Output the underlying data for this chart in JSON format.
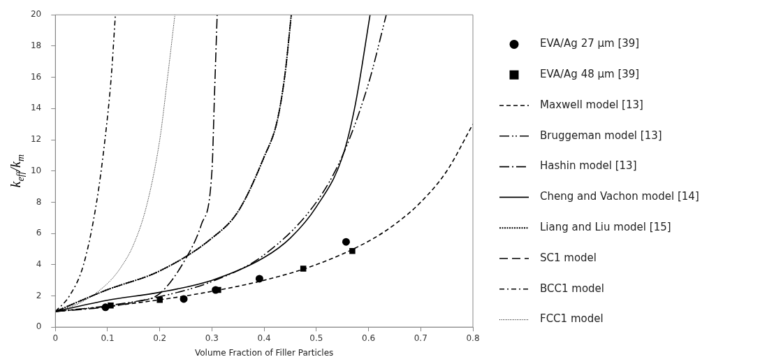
{
  "chart_data": {
    "type": "line",
    "xlabel": "Volume Fraction of Filler Particles",
    "ylabel": "k$_{eff}$/k$_{m}$",
    "xlim": [
      0,
      0.8
    ],
    "xticks": [
      0,
      0.1,
      0.2,
      0.3,
      0.4,
      0.5,
      0.6,
      0.7,
      0.8
    ],
    "ylim": [
      0,
      20
    ],
    "yticks": [
      0,
      2,
      4,
      6,
      8,
      10,
      12,
      14,
      16,
      18,
      20
    ],
    "grid": false,
    "legend": "right",
    "series": [
      {
        "name": "EVA/Ag 27 μm [39]",
        "type": "scatter",
        "marker": "circle",
        "color": "#000000",
        "x": [
          0.096,
          0.246,
          0.307,
          0.391,
          0.557
        ],
        "values": [
          1.27,
          1.8,
          2.38,
          3.1,
          5.46
        ]
      },
      {
        "name": "EVA/Ag 48 μm [39]",
        "type": "scatter",
        "marker": "square",
        "color": "#000000",
        "x": [
          0.106,
          0.2,
          0.312,
          0.475,
          0.569
        ],
        "values": [
          1.38,
          1.74,
          2.38,
          3.74,
          4.87
        ]
      },
      {
        "name": "Maxwell model [13]",
        "line_style": "dashed",
        "color": "#000000",
        "x": [
          0,
          0.1,
          0.2,
          0.3,
          0.4,
          0.5,
          0.6,
          0.65,
          0.7,
          0.75,
          0.8
        ],
        "values": [
          1,
          1.33,
          1.75,
          2.29,
          3,
          4,
          5.5,
          6.57,
          8,
          10,
          13
        ]
      },
      {
        "name": "Bruggeman model [13]",
        "line_style": "dashdotdot",
        "color": "#000000",
        "x": [
          0,
          0.1,
          0.2,
          0.3,
          0.4,
          0.5,
          0.55,
          0.6,
          0.634
        ],
        "values": [
          1,
          1.37,
          1.95,
          2.92,
          4.63,
          8,
          10.97,
          15.6,
          20
        ]
      },
      {
        "name": "Hashin model [13]",
        "line_style": "dashdot",
        "color": "#000000",
        "x": [
          0,
          0.1,
          0.15,
          0.2,
          0.25,
          0.28,
          0.3,
          0.305,
          0.31
        ],
        "values": [
          1,
          1.3,
          1.6,
          2.15,
          4.4,
          6.6,
          10,
          15,
          20
        ]
      },
      {
        "name": "Cheng and Vachon model [14]",
        "line_style": "solid",
        "color": "#000000",
        "x": [
          0,
          0.1,
          0.2,
          0.3,
          0.4,
          0.45,
          0.5,
          0.55,
          0.575,
          0.603
        ],
        "values": [
          1,
          1.72,
          2.23,
          3,
          4.46,
          5.7,
          7.7,
          10.9,
          14.3,
          20
        ]
      },
      {
        "name": "Liang and Liu model [15]",
        "line_style": "dotted",
        "color": "#000000",
        "x": [
          0,
          0.1,
          0.2,
          0.3,
          0.35,
          0.4,
          0.425,
          0.44,
          0.452
        ],
        "values": [
          1,
          2.4,
          3.6,
          5.7,
          7.4,
          10.9,
          13.2,
          16.2,
          20
        ]
      },
      {
        "name": "SC1 model",
        "line_style": "longdash",
        "color": "#000000",
        "x": [
          0,
          0.1,
          0.2,
          0.3,
          0.35,
          0.4,
          0.425,
          0.44,
          0.452
        ],
        "values": [
          1,
          2.4,
          3.6,
          5.7,
          7.4,
          10.9,
          13.2,
          16.2,
          20
        ]
      },
      {
        "name": "BCC1 model",
        "line_style": "dashdotsmall",
        "color": "#000000",
        "x": [
          0,
          0.027,
          0.054,
          0.079,
          0.095,
          0.107,
          0.115
        ],
        "values": [
          1,
          2,
          4,
          8,
          12,
          16,
          20
        ]
      },
      {
        "name": "FCC1 model",
        "line_style": "finedotted",
        "color": "#000000",
        "x": [
          0,
          0.05,
          0.1,
          0.125,
          0.15,
          0.175,
          0.2,
          0.215,
          0.229
        ],
        "values": [
          1,
          1.6,
          2.8,
          3.8,
          5.3,
          7.8,
          12,
          16,
          20
        ]
      }
    ]
  }
}
